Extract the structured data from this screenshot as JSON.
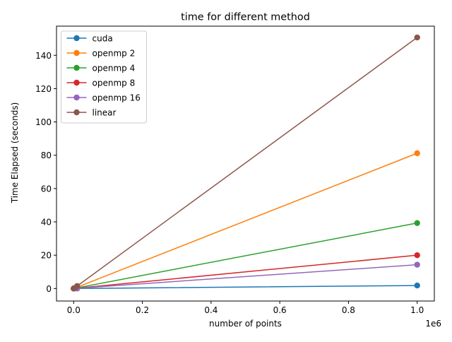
{
  "chart_data": {
    "type": "line",
    "title": "time for different method",
    "xlabel": "number of points",
    "ylabel": "Time Elapsed (seconds)",
    "x_offset_label": "1e6",
    "xlim": [
      -0.05,
      1.05
    ],
    "ylim": [
      -7.5,
      157.5
    ],
    "x_ticks": [
      0.0,
      0.2,
      0.4,
      0.6,
      0.8,
      1.0
    ],
    "x_tick_labels": [
      "0.0",
      "0.2",
      "0.4",
      "0.6",
      "0.8",
      "1.0"
    ],
    "y_ticks": [
      0,
      20,
      40,
      60,
      80,
      100,
      120,
      140
    ],
    "y_tick_labels": [
      "0",
      "20",
      "40",
      "60",
      "80",
      "100",
      "120",
      "140"
    ],
    "grid": false,
    "legend_position": "top-left",
    "x": [
      0.0001,
      0.001,
      0.01,
      1.0
    ],
    "series": [
      {
        "name": "cuda",
        "color": "#1f77b4",
        "values": [
          0.01,
          0.02,
          0.04,
          1.8
        ]
      },
      {
        "name": "openmp 2",
        "color": "#ff7f0e",
        "values": [
          0.01,
          0.08,
          0.8,
          81.2
        ]
      },
      {
        "name": "openmp 4",
        "color": "#2ca02c",
        "values": [
          0.005,
          0.04,
          0.4,
          39.3
        ]
      },
      {
        "name": "openmp 8",
        "color": "#d62728",
        "values": [
          0.003,
          0.02,
          0.2,
          20.0
        ]
      },
      {
        "name": "openmp 16",
        "color": "#9467bd",
        "values": [
          0.002,
          0.015,
          0.15,
          14.3
        ]
      },
      {
        "name": "linear",
        "color": "#8c564b",
        "values": [
          0.015,
          0.15,
          1.5,
          150.7
        ]
      }
    ]
  }
}
